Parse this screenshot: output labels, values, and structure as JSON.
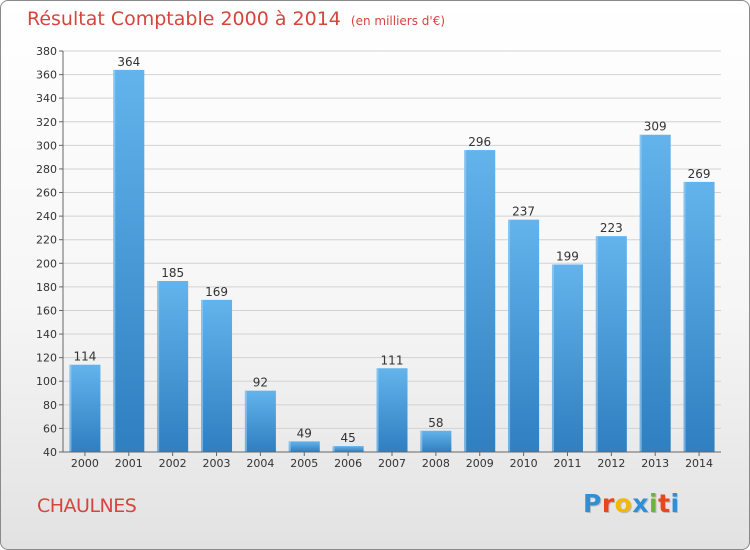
{
  "header": {
    "title": "Résultat Comptable 2000 à 2014",
    "unit": "(en milliers d'€)"
  },
  "footer": {
    "city": "CHAULNES",
    "logo_letters": [
      "P",
      "r",
      "o",
      "x",
      "i",
      "t",
      "i"
    ],
    "logo_colors": [
      "#2f8fd6",
      "#e8461e",
      "#f3b800",
      "#2f8fd6",
      "#6fb33f",
      "#e8461e",
      "#2f8fd6"
    ]
  },
  "colors": {
    "bar_light": "#63b3ec",
    "bar_dark": "#2f7fc1",
    "grid": "#d2d2d2",
    "axis": "#666666",
    "text": "#333333",
    "accent": "#d6453d"
  },
  "chart_data": {
    "type": "bar",
    "categories": [
      "2000",
      "2001",
      "2002",
      "2003",
      "2004",
      "2005",
      "2006",
      "2007",
      "2008",
      "2009",
      "2010",
      "2011",
      "2012",
      "2013",
      "2014"
    ],
    "values": [
      114,
      364,
      185,
      169,
      92,
      49,
      45,
      111,
      58,
      296,
      237,
      199,
      223,
      309,
      269
    ],
    "data_labels": [
      "114",
      "364",
      "185",
      "169",
      "92",
      "49",
      "45",
      "111",
      "58",
      "296",
      "237",
      "199",
      "223",
      "309",
      "269"
    ],
    "yticks": [
      40,
      60,
      80,
      100,
      120,
      140,
      160,
      180,
      200,
      220,
      240,
      260,
      280,
      300,
      320,
      340,
      360,
      380
    ],
    "ylim": [
      40,
      380
    ],
    "grid": true,
    "legend": "none"
  }
}
